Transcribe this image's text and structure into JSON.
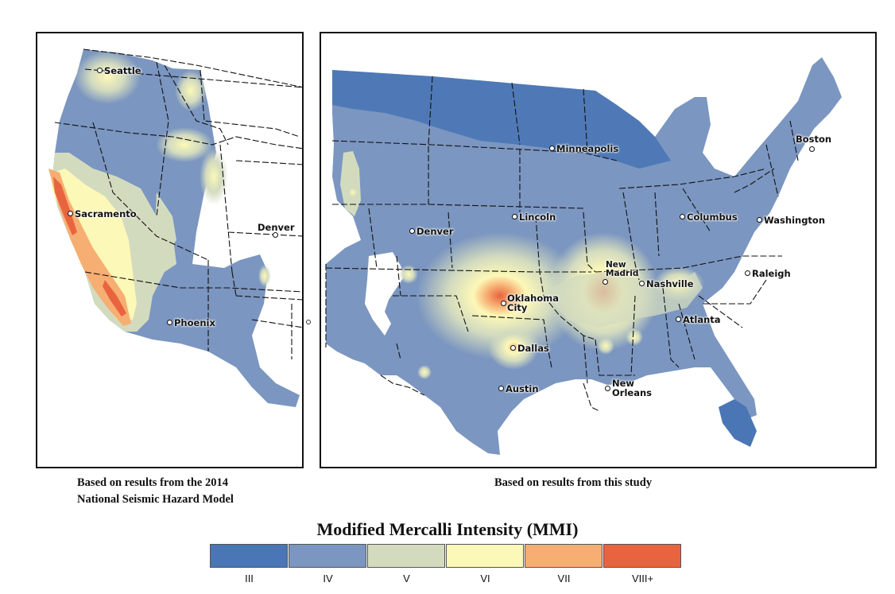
{
  "panels": {
    "west": {
      "caption": [
        "Based on results from the 2014",
        "National Seismic Hazard Model"
      ],
      "cities": [
        {
          "id": "seattle",
          "name": "Seattle"
        },
        {
          "id": "sacramento",
          "name": "Sacramento"
        },
        {
          "id": "denver",
          "name": "Denver"
        },
        {
          "id": "phoenix",
          "name": "Phoenix"
        }
      ]
    },
    "east": {
      "caption": [
        "Based on results from this study"
      ],
      "cities": [
        {
          "id": "minneapolis",
          "name": "Minneapolis"
        },
        {
          "id": "boston",
          "name": "Boston"
        },
        {
          "id": "lincoln",
          "name": "Lincoln"
        },
        {
          "id": "columbus",
          "name": "Columbus"
        },
        {
          "id": "washington",
          "name": "Washington"
        },
        {
          "id": "denver",
          "name": "Denver"
        },
        {
          "id": "new-madrid",
          "name": "New Madrid"
        },
        {
          "id": "nashville",
          "name": "Nashville"
        },
        {
          "id": "raleigh",
          "name": "Raleigh"
        },
        {
          "id": "oklahoma-city",
          "name": "Oklahoma City"
        },
        {
          "id": "atlanta",
          "name": "Atlanta"
        },
        {
          "id": "dallas",
          "name": "Dallas"
        },
        {
          "id": "new-orleans",
          "name": "New Orleans"
        },
        {
          "id": "austin",
          "name": "Austin"
        }
      ]
    }
  },
  "legend": {
    "title": "Modified Mercalli Intensity (MMI)",
    "classes": [
      {
        "label": "III",
        "color": "#4a76b5"
      },
      {
        "label": "IV",
        "color": "#7b96c0"
      },
      {
        "label": "V",
        "color": "#d3dbbf"
      },
      {
        "label": "VI",
        "color": "#fcf8b7"
      },
      {
        "label": "VII",
        "color": "#f7ae72"
      },
      {
        "label": "VIII+",
        "color": "#e8643f"
      }
    ]
  }
}
